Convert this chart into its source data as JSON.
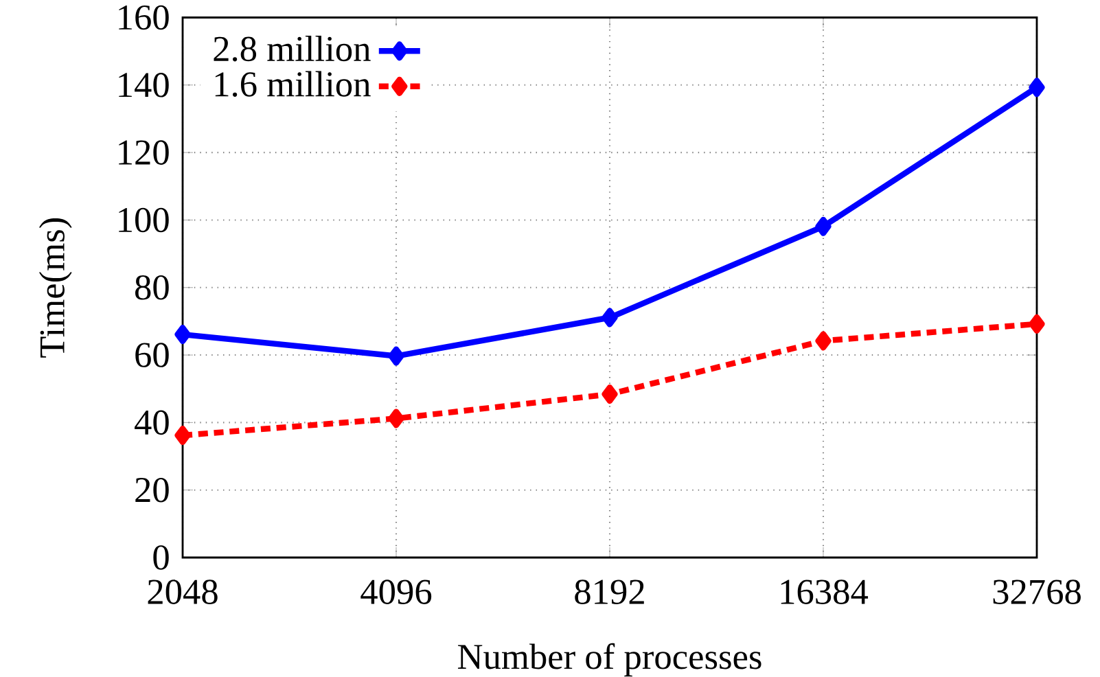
{
  "chart_data": {
    "type": "line",
    "xlabel": "Number of processes",
    "ylabel": "Time(ms)",
    "categories": [
      "2048",
      "4096",
      "8192",
      "16384",
      "32768"
    ],
    "series": [
      {
        "name": "2.8 million",
        "color": "#0000ff",
        "line_style": "solid",
        "values": [
          66.1,
          59.7,
          71.1,
          98.1,
          139.3
        ]
      },
      {
        "name": "1.6 million",
        "color": "#ff0000",
        "line_style": "dotted",
        "values": [
          36.2,
          41.2,
          48.4,
          64.2,
          69.2
        ]
      }
    ],
    "ylim": [
      0,
      160
    ],
    "yticks": [
      0,
      20,
      40,
      60,
      80,
      100,
      120,
      140,
      160
    ],
    "grid": true,
    "legend": "top left",
    "marker": "diamond"
  }
}
